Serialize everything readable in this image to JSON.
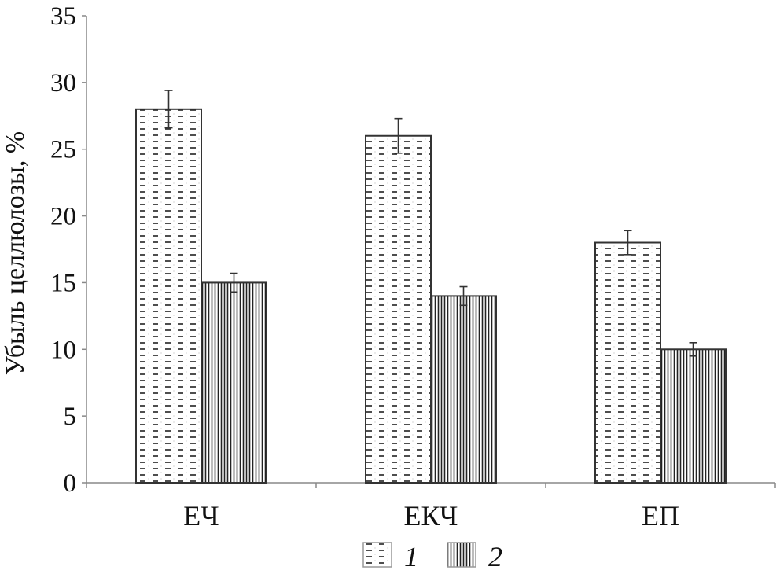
{
  "chart_data": {
    "type": "bar",
    "title": "",
    "xlabel": "",
    "ylabel": "Убыль целлюлозы, %",
    "ylim": [
      0,
      35
    ],
    "yticks": [
      0,
      5,
      10,
      15,
      20,
      25,
      30,
      35
    ],
    "grid": false,
    "legend_position": "bottom",
    "categories": [
      "ЕЧ",
      "ЕКЧ",
      "ЕП"
    ],
    "series": [
      {
        "name": "1",
        "values": [
          28,
          26,
          18
        ],
        "errors": [
          1.4,
          1.3,
          0.9
        ],
        "pattern": "dashes"
      },
      {
        "name": "2",
        "values": [
          15,
          14,
          10
        ],
        "errors": [
          0.7,
          0.7,
          0.5
        ],
        "pattern": "vertical-lines"
      }
    ],
    "colors": {
      "bar_stroke": "#333333",
      "fill": "#ffffff",
      "pattern": "#222222"
    }
  }
}
